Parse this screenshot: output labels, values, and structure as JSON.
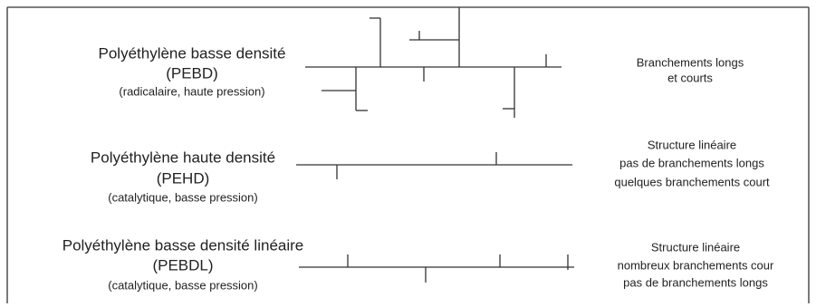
{
  "rows": [
    {
      "name": "Polyéthylène basse densité",
      "abbreviation": "(PEBD)",
      "process": "(radicalaire, haute pression)",
      "description": [
        "Branchements longs",
        "et courts"
      ]
    },
    {
      "name": "Polyéthylène haute densité",
      "abbreviation": "(PEHD)",
      "process": "(catalytique, basse pression)",
      "description": [
        "Structure linéaire",
        "pas de branchements longs",
        "quelques branchements court"
      ]
    },
    {
      "name": "Polyéthylène basse densité linéaire",
      "abbreviation": "(PEBDL)",
      "process": "(catalytique, basse pression)",
      "description": [
        "Structure linéaire",
        "nombreux branchements cour",
        "pas de branchements longs"
      ]
    }
  ]
}
